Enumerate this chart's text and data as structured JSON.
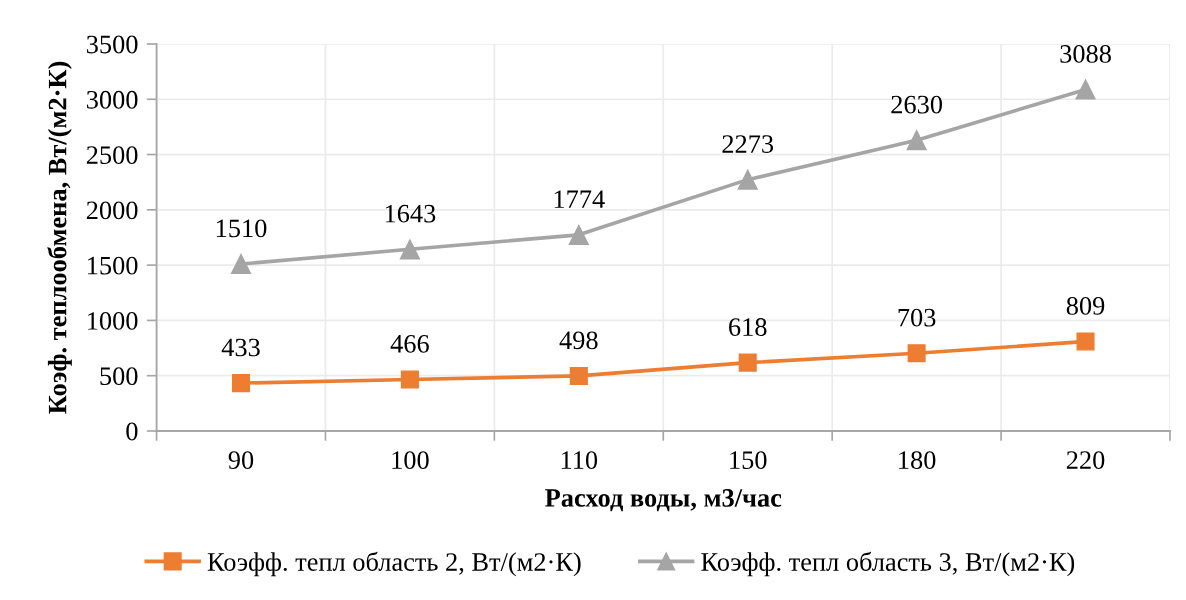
{
  "chart_data": {
    "type": "line",
    "xlabel": "Расход воды, м3/час",
    "ylabel": "Коэф. теплообмена, Вт/(м2·К)",
    "categories": [
      "90",
      "100",
      "110",
      "150",
      "180",
      "220"
    ],
    "series": [
      {
        "name": "Коэфф. тепл область 2, Вт/(м2·К)",
        "color": "#ed7d31",
        "marker": "square",
        "values": [
          433,
          466,
          498,
          618,
          703,
          809
        ]
      },
      {
        "name": "Коэфф. тепл область 3, Вт/(м2·К)",
        "color": "#a5a5a5",
        "marker": "triangle",
        "values": [
          1510,
          1643,
          1774,
          2273,
          2630,
          3088
        ]
      }
    ],
    "ylim": [
      0,
      3500
    ],
    "yticks": [
      0,
      500,
      1000,
      1500,
      2000,
      2500,
      3000,
      3500
    ],
    "grid": true,
    "legend": "bottom",
    "data_labels": true,
    "line_style": "solid"
  }
}
